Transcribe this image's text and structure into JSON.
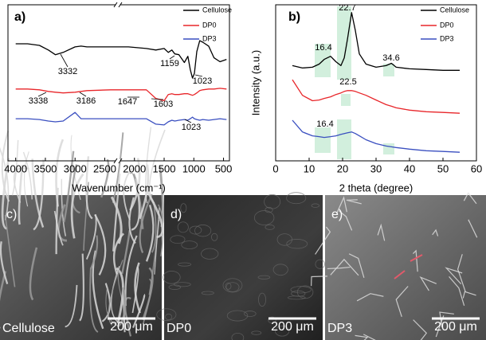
{
  "chart_data": [
    {
      "type": "line",
      "label": "a)",
      "xlabel": "Wavenumber (cm⁻¹)",
      "x": [
        4000,
        3800,
        3600,
        3450,
        3332,
        3200,
        3000,
        2900,
        2800,
        2400,
        2100,
        1800,
        1640,
        1500,
        1430,
        1370,
        1320,
        1250,
        1159,
        1100,
        1060,
        1023,
        990,
        950,
        900,
        850,
        750,
        660,
        560,
        450
      ],
      "xlim": [
        4130,
        400
      ],
      "xticks": [
        4000,
        3500,
        3000,
        2500,
        2000,
        1500,
        1000,
        500
      ],
      "ylim": [
        0,
        200
      ],
      "legend": "upper right",
      "series": [
        {
          "name": "Cellulose",
          "color": "#000000",
          "values": [
            150,
            150,
            148,
            142,
            136,
            139,
            146,
            147,
            146,
            146,
            146,
            144,
            142,
            144,
            139,
            142,
            137,
            136,
            126,
            134,
            117,
            106,
            112,
            140,
            154,
            152,
            147,
            132,
            127,
            130
          ]
        },
        {
          "name": "DP0",
          "color": "#e8262a",
          "values": [
            92,
            92,
            91,
            89,
            88,
            87,
            88,
            89,
            90,
            91,
            91,
            91,
            80,
            77,
            85,
            86,
            85,
            85,
            86,
            86,
            85,
            84,
            85,
            87,
            90,
            91,
            92,
            92,
            93,
            92
          ]
        },
        {
          "name": "DP3",
          "color": "#3a4fc0",
          "values": [
            54,
            54,
            53,
            51,
            50,
            51,
            62,
            54,
            54,
            54,
            54,
            54,
            47,
            46,
            50,
            52,
            51,
            52,
            53,
            52,
            54,
            56,
            54,
            53,
            52,
            53,
            52,
            53,
            54,
            53
          ]
        }
      ],
      "annotations": [
        "3332",
        "1159",
        "1023",
        "3338",
        "3186",
        "1647",
        "1603",
        "1023"
      ]
    },
    {
      "type": "line",
      "label": "b)",
      "xlabel": "2 theta (degree)",
      "ylabel": "Intensity (a.u.)",
      "x": [
        5,
        8,
        11,
        13,
        14.5,
        16.4,
        18,
        19.5,
        20.5,
        21.5,
        22.7,
        23.8,
        25,
        27,
        30,
        33,
        34.6,
        36,
        40,
        45,
        50,
        55
      ],
      "xlim": [
        0,
        60
      ],
      "xticks": [
        0,
        10,
        20,
        30,
        40,
        50,
        60
      ],
      "ylim": [
        0,
        200
      ],
      "legend": "upper right",
      "series": [
        {
          "name": "Cellulose",
          "color": "#000000",
          "values": [
            122,
            119,
            120,
            124,
            130,
            134,
            127,
            122,
            132,
            157,
            190,
            167,
            137,
            124,
            120,
            122,
            125,
            120,
            118,
            117,
            116,
            116
          ]
        },
        {
          "name": "DP0",
          "color": "#e8262a",
          "values": [
            104,
            84,
            77,
            78,
            80,
            82,
            85,
            87,
            89,
            90,
            90,
            89,
            87,
            84,
            78,
            72,
            70,
            68,
            65,
            63,
            62,
            61
          ]
        },
        {
          "name": "DP3",
          "color": "#3a4fc0",
          "values": [
            52,
            37,
            32,
            31,
            30,
            31,
            32,
            34,
            35,
            36,
            37,
            35,
            32,
            27,
            22,
            19,
            18,
            17,
            15,
            13,
            12,
            11
          ]
        }
      ],
      "annotations": [
        "16.4",
        "22.7",
        "34.6",
        "22.5",
        "16.4"
      ]
    }
  ],
  "micrographs": [
    {
      "label": "c)",
      "caption": "Cellulose",
      "scale_bar": "200 μm"
    },
    {
      "label": "d)",
      "caption": "DP0",
      "scale_bar": "200 μm"
    },
    {
      "label": "e)",
      "caption": "DP3",
      "scale_bar": "200 μm"
    }
  ]
}
